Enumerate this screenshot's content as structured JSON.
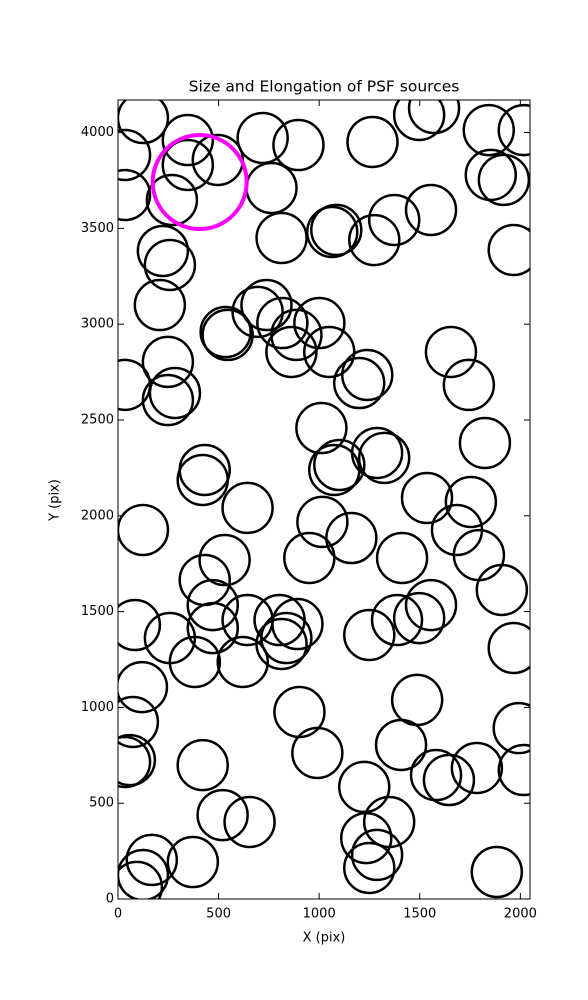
{
  "chart_data": {
    "type": "scatter",
    "title": "Size and Elongation of PSF sources",
    "x_label": "X (pix)",
    "y_label": "Y (pix)",
    "xlim": [
      0,
      2048
    ],
    "ylim": [
      0,
      4170
    ],
    "xticks": [
      0,
      500,
      1000,
      1500,
      2000
    ],
    "yticks": [
      0,
      500,
      1000,
      1500,
      2000,
      2500,
      3000,
      3500,
      4000
    ],
    "series": [
      {
        "color": "#000000",
        "x": [
          124,
          35,
          35,
          347,
          347,
          496,
          268,
          719,
          897,
          763,
          1265,
          1497,
          1571,
          1843,
          1853,
          1918,
          2017,
          813,
          1065,
          1085,
          1274,
          1373,
          1556,
          1967,
          223,
          258,
          208,
          535,
          545,
          694,
          738,
          817,
          887,
          1001,
          862,
          1050,
          35,
          248,
          248,
          283,
          1199,
          1239,
          1655,
          1744,
          1011,
          1075,
          1100,
          1288,
          1323,
          1824,
          431,
          421,
          644,
          1536,
          1754,
          1685,
          124,
          1016,
          1160,
          951,
          1412,
          1794,
          530,
          431,
          471,
          471,
          84,
          258,
          382,
          644,
          620,
          803,
          837,
          892,
          813,
          1249,
          1387,
          1497,
          1556,
          1908,
          1967,
          119,
          74,
          35,
          59,
          902,
          991,
          1487,
          1407,
          1992,
          2017,
          421,
          520,
          654,
          1224,
          1581,
          1645,
          1784,
          1234,
          1348,
          1288,
          1249,
          168,
          124,
          94,
          372,
          1883
        ],
        "y": [
          4076,
          3883,
          3674,
          3961,
          3831,
          3857,
          3648,
          3972,
          3935,
          3711,
          3951,
          4092,
          4128,
          4013,
          3779,
          3753,
          4013,
          3450,
          3481,
          3492,
          3439,
          3544,
          3596,
          3387,
          3382,
          3309,
          3100,
          2959,
          2944,
          3064,
          3100,
          3006,
          2944,
          3006,
          2855,
          2855,
          2683,
          2803,
          2604,
          2641,
          2693,
          2735,
          2855,
          2683,
          2458,
          2239,
          2265,
          2328,
          2302,
          2380,
          2239,
          2187,
          2041,
          2093,
          2072,
          1926,
          1926,
          1968,
          1884,
          1780,
          1780,
          1795,
          1769,
          1665,
          1534,
          1414,
          1430,
          1362,
          1237,
          1456,
          1237,
          1456,
          1362,
          1435,
          1331,
          1378,
          1456,
          1466,
          1534,
          1613,
          1310,
          1106,
          924,
          715,
          725,
          976,
          762,
          1039,
          804,
          892,
          673,
          699,
          438,
          402,
          585,
          647,
          621,
          684,
          318,
          402,
          230,
          162,
          204,
          125,
          63,
          193,
          141
        ]
      },
      {
        "color": "#ff00ff",
        "x": [
          406
        ],
        "y": [
          3742
        ]
      }
    ]
  }
}
